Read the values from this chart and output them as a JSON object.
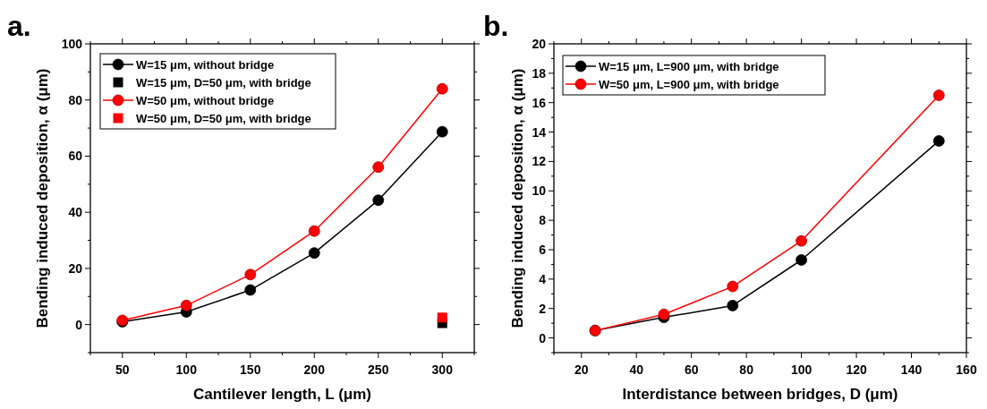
{
  "chart_data": [
    {
      "type": "line",
      "title": "a.",
      "xlabel": "Cantilever length, L (μm)",
      "ylabel": "Bending induced deposition, α (μm)",
      "xlim": [
        25,
        325
      ],
      "xticks": [
        {
          "value": 25,
          "label": null
        },
        50,
        {
          "value": 75,
          "label": null
        },
        100,
        {
          "value": 125,
          "label": null
        },
        150,
        {
          "value": 175,
          "label": null
        },
        200,
        {
          "value": 225,
          "label": null
        },
        250,
        {
          "value": 275,
          "label": null
        },
        300,
        {
          "value": 325,
          "label": null
        }
      ],
      "ylim": [
        -10,
        100
      ],
      "yticks": [
        {
          "value": -10,
          "label": null
        },
        0,
        {
          "value": 10,
          "label": null
        },
        20,
        {
          "value": 30,
          "label": null
        },
        40,
        {
          "value": 50,
          "label": null
        },
        60,
        {
          "value": 70,
          "label": null
        },
        80,
        {
          "value": 90,
          "label": null
        },
        100
      ],
      "legend": "top left",
      "marker": "circle",
      "series": [
        {
          "name": "W=15 μm, without bridge",
          "color": "#000000",
          "x": [
            50,
            100,
            150,
            200,
            250,
            300
          ],
          "values": [
            1,
            4.5,
            12.3,
            25.5,
            44.3,
            68.7
          ]
        },
        {
          "name": "W=15 μm, D=50 μm, with bridge",
          "type": "scatter",
          "marker": "square",
          "color": "#000000",
          "x": [
            300
          ],
          "values": [
            0.5
          ]
        },
        {
          "name": "W=50 μm, without bridge",
          "color": "#ff0000",
          "x": [
            50,
            100,
            150,
            200,
            250,
            300
          ],
          "values": [
            1.5,
            6.8,
            17.8,
            33.3,
            56.1,
            84
          ]
        },
        {
          "name": "W=50 μm, D=50 μm, with bridge",
          "type": "scatter",
          "marker": "square",
          "color": "#ff0000",
          "x": [
            300
          ],
          "values": [
            2.5
          ]
        }
      ]
    },
    {
      "type": "line",
      "title": "b.",
      "xlabel": "Interdistance between bridges, D (μm)",
      "ylabel": "Bending induced deposition, α (μm)",
      "xlim": [
        10,
        160
      ],
      "xticks": [
        {
          "value": 10,
          "label": null
        },
        20,
        {
          "value": 30,
          "label": null
        },
        40,
        {
          "value": 50,
          "label": null
        },
        60,
        {
          "value": 70,
          "label": null
        },
        80,
        {
          "value": 90,
          "label": null
        },
        100,
        {
          "value": 110,
          "label": null
        },
        120,
        {
          "value": 130,
          "label": null
        },
        140,
        {
          "value": 150,
          "label": null
        },
        160
      ],
      "ylim": [
        -1,
        20
      ],
      "yticks": [
        {
          "value": -1,
          "label": null
        },
        0,
        {
          "value": 1,
          "label": null
        },
        2,
        {
          "value": 3,
          "label": null
        },
        4,
        {
          "value": 5,
          "label": null
        },
        6,
        {
          "value": 7,
          "label": null
        },
        8,
        {
          "value": 9,
          "label": null
        },
        10,
        {
          "value": 11,
          "label": null
        },
        12,
        {
          "value": 13,
          "label": null
        },
        14,
        {
          "value": 15,
          "label": null
        },
        16,
        {
          "value": 17,
          "label": null
        },
        18,
        {
          "value": 19,
          "label": null
        },
        20
      ],
      "legend": "top left",
      "marker": "circle",
      "series": [
        {
          "name": "W=15 μm, L=900 μm, with bridge",
          "color": "#000000",
          "x": [
            25,
            50,
            75,
            100,
            150
          ],
          "values": [
            0.5,
            1.4,
            2.2,
            5.3,
            13.4
          ]
        },
        {
          "name": "W=50 μm, L=900 μm, with bridge",
          "color": "#ff0000",
          "x": [
            25,
            50,
            75,
            100,
            150
          ],
          "values": [
            0.5,
            1.6,
            3.5,
            6.6,
            16.5
          ]
        }
      ]
    }
  ]
}
